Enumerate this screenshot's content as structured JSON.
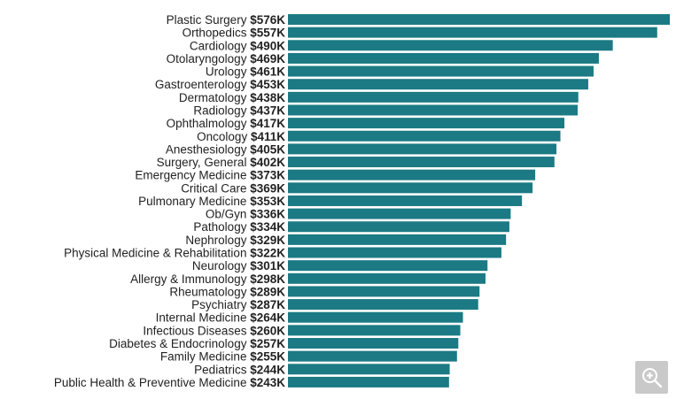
{
  "chart_data": {
    "type": "bar",
    "orientation": "horizontal",
    "bar_color": "#1b7a84",
    "categories": [
      "Plastic Surgery",
      "Orthopedics",
      "Cardiology",
      "Otolaryngology",
      "Urology",
      "Gastroenterology",
      "Dermatology",
      "Radiology",
      "Ophthalmology",
      "Oncology",
      "Anesthesiology",
      "Surgery, General",
      "Emergency Medicine",
      "Critical Care",
      "Pulmonary Medicine",
      "Ob/Gyn",
      "Pathology",
      "Nephrology",
      "Physical Medicine & Rehabilitation",
      "Neurology",
      "Allergy & Immunology",
      "Rheumatology",
      "Psychiatry",
      "Internal Medicine",
      "Infectious Diseases",
      "Diabetes & Endocrinology",
      "Family Medicine",
      "Pediatrics",
      "Public Health & Preventive Medicine"
    ],
    "values": [
      576,
      557,
      490,
      469,
      461,
      453,
      438,
      437,
      417,
      411,
      405,
      402,
      373,
      369,
      353,
      336,
      334,
      329,
      322,
      301,
      298,
      289,
      287,
      264,
      260,
      257,
      255,
      244,
      243
    ],
    "value_labels": [
      "$576K",
      "$557K",
      "$490K",
      "$469K",
      "$461K",
      "$453K",
      "$438K",
      "$437K",
      "$417K",
      "$411K",
      "$405K",
      "$402K",
      "$373K",
      "$369K",
      "$353K",
      "$336K",
      "$334K",
      "$329K",
      "$322K",
      "$301K",
      "$298K",
      "$289K",
      "$287K",
      "$264K",
      "$260K",
      "$257K",
      "$255K",
      "$244K",
      "$243K"
    ],
    "unit": "thousands of US dollars"
  },
  "zoom_button": {
    "icon": "zoom-in-icon"
  }
}
